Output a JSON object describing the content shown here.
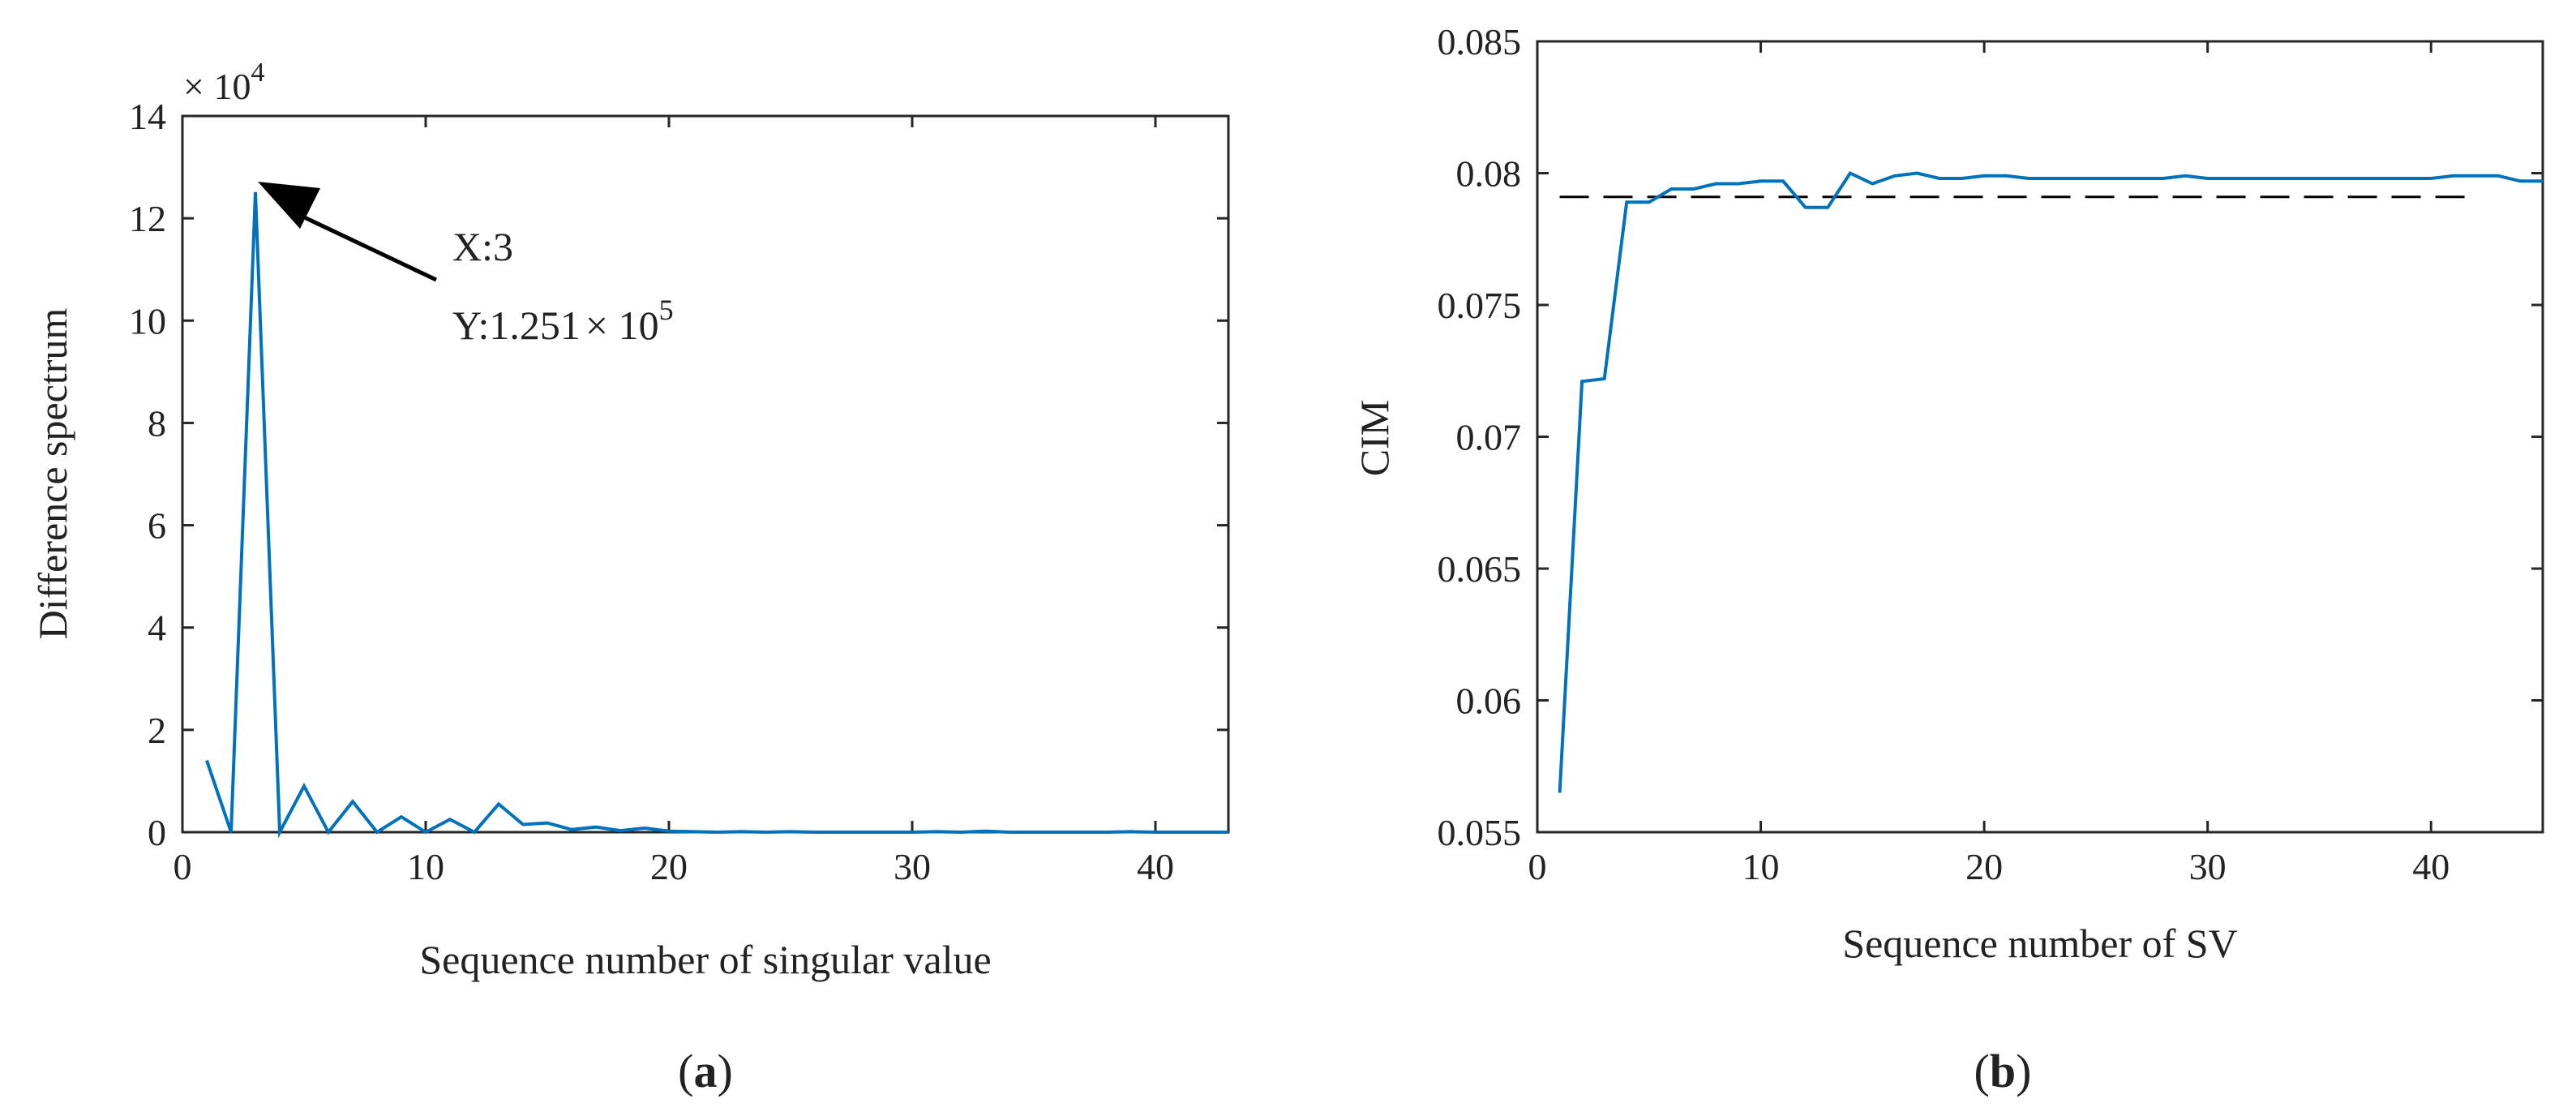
{
  "figure": {
    "panel_labels": [
      "a",
      "b"
    ]
  },
  "colors": {
    "series": "#0072BD",
    "axis": "#262626",
    "text": "#222222",
    "reference_line": "#000000"
  },
  "chart_data": [
    {
      "type": "line",
      "panel": "a",
      "title": "",
      "xlabel": "Sequence number of singular value",
      "ylabel": "Difference spectrum",
      "xlim": [
        0,
        43
      ],
      "ylim": [
        0,
        14
      ],
      "xticks": [
        0,
        10,
        20,
        30,
        40
      ],
      "yticks": [
        0,
        2,
        4,
        6,
        8,
        10,
        12,
        14
      ],
      "y_exponent": "× 10",
      "y_exponent_power": "4",
      "series": [
        {
          "name": "Difference spectrum",
          "x": [
            1,
            2,
            3,
            4,
            5,
            6,
            7,
            8,
            9,
            10,
            11,
            12,
            13,
            14,
            15,
            16,
            17,
            18,
            19,
            20,
            21,
            22,
            23,
            24,
            25,
            26,
            27,
            28,
            29,
            30,
            31,
            32,
            33,
            34,
            35,
            36,
            37,
            38,
            39,
            40,
            41,
            42,
            43
          ],
          "values": [
            1.4,
            0.0,
            12.51,
            0.0,
            0.9,
            0.0,
            0.6,
            0.0,
            0.3,
            0.0,
            0.25,
            0.0,
            0.55,
            0.15,
            0.18,
            0.05,
            0.1,
            0.03,
            0.08,
            0.02,
            0.01,
            0.0,
            0.01,
            0.0,
            0.01,
            0.0,
            0.0,
            0.0,
            0.0,
            0.0,
            0.01,
            0.0,
            0.02,
            0.0,
            0.0,
            0.0,
            0.0,
            0.0,
            0.01,
            0.0,
            0.0,
            0.0,
            0.0
          ]
        }
      ],
      "annotation": {
        "x_text": "X:3",
        "y_text": "Y:1.251",
        "y_text_times": "× 10",
        "y_text_power": "5",
        "point": [
          3,
          12.51
        ]
      }
    },
    {
      "type": "line",
      "panel": "b",
      "title": "",
      "xlabel": "Sequence number of SV",
      "ylabel": "CIM",
      "xlim": [
        0,
        45
      ],
      "ylim": [
        0.055,
        0.085
      ],
      "xticks": [
        0,
        10,
        20,
        30,
        40
      ],
      "yticks": [
        "0.055",
        "0.06",
        "0.065",
        "0.07",
        "0.075",
        "0.08",
        "0.085"
      ],
      "series": [
        {
          "name": "CIM",
          "x": [
            1,
            2,
            3,
            4,
            5,
            6,
            7,
            8,
            9,
            10,
            11,
            12,
            13,
            14,
            15,
            16,
            17,
            18,
            19,
            20,
            21,
            22,
            23,
            24,
            25,
            26,
            27,
            28,
            29,
            30,
            31,
            32,
            33,
            34,
            35,
            36,
            37,
            38,
            39,
            40,
            41,
            42,
            43,
            44,
            45
          ],
          "values": [
            0.0565,
            0.0721,
            0.0722,
            0.0789,
            0.0789,
            0.0794,
            0.0794,
            0.0796,
            0.0796,
            0.0797,
            0.0797,
            0.0787,
            0.0787,
            0.08,
            0.0796,
            0.0799,
            0.08,
            0.0798,
            0.0798,
            0.0799,
            0.0799,
            0.0798,
            0.0798,
            0.0798,
            0.0798,
            0.0798,
            0.0798,
            0.0798,
            0.0799,
            0.0798,
            0.0798,
            0.0798,
            0.0798,
            0.0798,
            0.0798,
            0.0798,
            0.0798,
            0.0798,
            0.0798,
            0.0798,
            0.0799,
            0.0799,
            0.0799,
            0.0797,
            0.0797
          ]
        }
      ],
      "reference_line": {
        "y": 0.0791,
        "x_range": [
          1,
          42
        ],
        "style": "dashed"
      }
    }
  ]
}
